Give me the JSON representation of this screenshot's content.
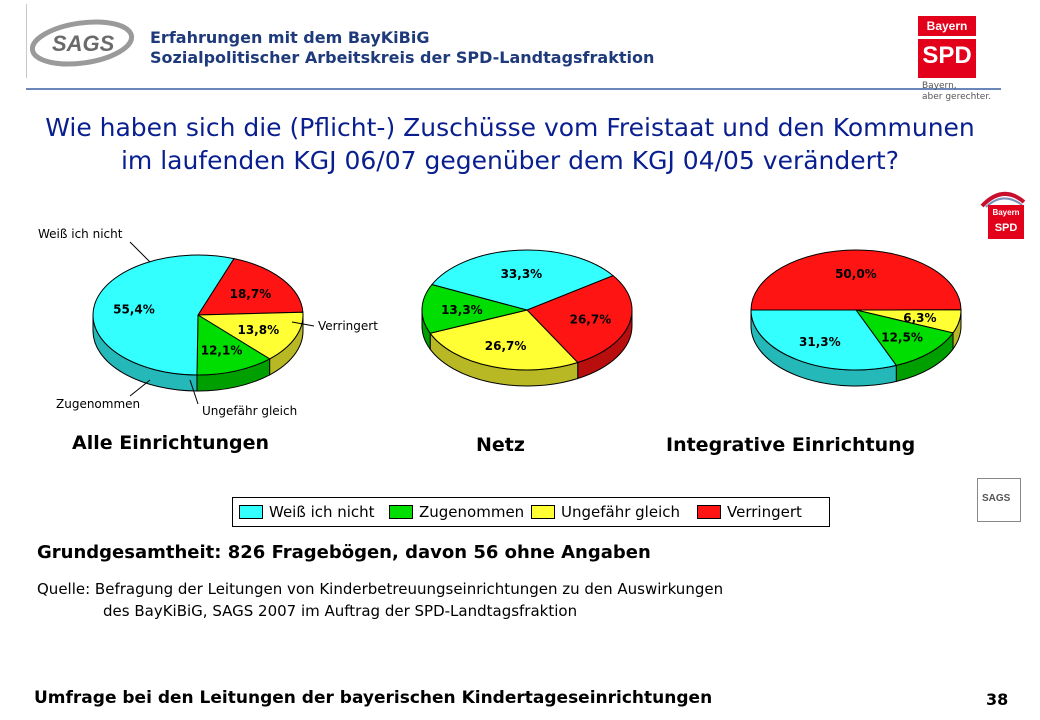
{
  "header": {
    "logo_text": "SAGS",
    "title_line1": "Erfahrungen mit dem BayKiBiG",
    "title_line2": "Sozialpolitischer Arbeitskreis der SPD-Landtagsfraktion",
    "spd_logo_top": "Bayern",
    "spd_logo_main": "SPD",
    "spd_slogan_line1": "Bayern,",
    "spd_slogan_line2": "aber gerechter.",
    "fraktion_logo_top": "Bayern",
    "fraktion_logo_main": "SPD",
    "small_logo_text": "SAGS"
  },
  "question": {
    "line1": "Wie haben sich die (Pflicht-) Zuschüsse vom Freistaat und den Kommunen",
    "line2": "im laufenden KGJ 06/07 gegenüber dem KGJ 04/05 verändert?"
  },
  "colors": {
    "weiss_ich_nicht": "#33ffff",
    "zugenommen": "#00dd00",
    "ungefaehr_gleich": "#ffff33",
    "verringert": "#ff1414"
  },
  "chart_data": [
    {
      "type": "pie",
      "title": "Alle Einrichtungen",
      "slices": [
        {
          "label": "Weiß ich nicht",
          "value": 55.4,
          "label_text": "55,4%"
        },
        {
          "label": "Zugenommen",
          "value": 12.1,
          "label_text": "12,1%"
        },
        {
          "label": "Ungefähr gleich",
          "value": 13.8,
          "label_text": "13,8%"
        },
        {
          "label": "Verringert",
          "value": 18.7,
          "label_text": "18,7%"
        }
      ],
      "callouts": [
        "Weiß ich nicht",
        "Verringert",
        "Zugenommen",
        "Ungefähr gleich"
      ]
    },
    {
      "type": "pie",
      "title": "Netz",
      "slices": [
        {
          "label": "Weiß ich nicht",
          "value": 33.3,
          "label_text": "33,3%"
        },
        {
          "label": "Zugenommen",
          "value": 13.3,
          "label_text": "13,3%"
        },
        {
          "label": "Ungefähr gleich",
          "value": 26.7,
          "label_text": "26,7%"
        },
        {
          "label": "Verringert",
          "value": 26.7,
          "label_text": "26,7%"
        }
      ]
    },
    {
      "type": "pie",
      "title": "Integrative Einrichtung",
      "slices": [
        {
          "label": "Weiß ich nicht",
          "value": 31.3,
          "label_text": "31,3%"
        },
        {
          "label": "Zugenommen",
          "value": 12.5,
          "label_text": "12,5%"
        },
        {
          "label": "Ungefähr gleich",
          "value": 6.3,
          "label_text": "6,3%"
        },
        {
          "label": "Verringert",
          "value": 50.0,
          "label_text": "50,0%"
        }
      ]
    }
  ],
  "legend": [
    "Weiß ich nicht",
    "Zugenommen",
    "Ungefähr gleich",
    "Verringert"
  ],
  "base_text": "Grundgesamtheit: 826 Fragebögen, davon 56 ohne Angaben",
  "source_line1": "Quelle: Befragung der Leitungen von Kinderbetreuungseinrichtungen zu den Auswirkungen",
  "source_line2": "des BayKiBiG, SAGS 2007 im Auftrag der SPD-Landtagsfraktion",
  "footer": "Umfrage bei den Leitungen der bayerischen Kindertageseinrichtungen",
  "page_number": "38"
}
